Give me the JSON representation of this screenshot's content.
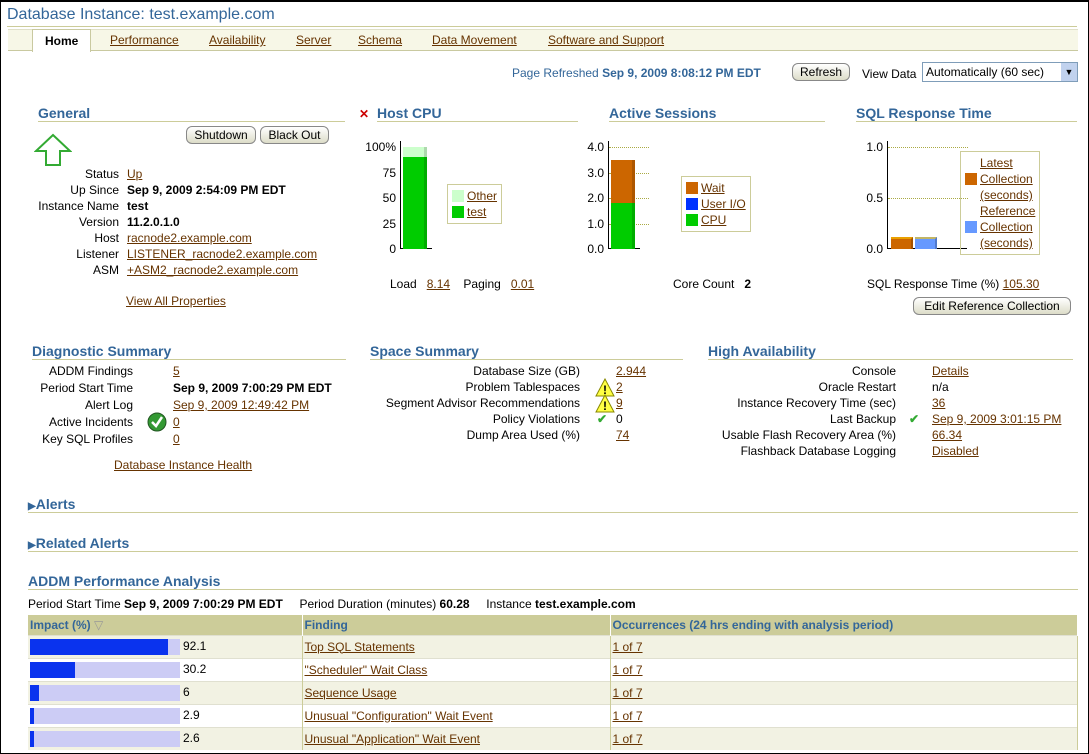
{
  "title": "Database Instance: test.example.com",
  "tabs": [
    {
      "label": "Home",
      "active": true
    },
    {
      "label": "Performance"
    },
    {
      "label": "Availability"
    },
    {
      "label": "Server"
    },
    {
      "label": "Schema"
    },
    {
      "label": "Data Movement"
    },
    {
      "label": "Software and Support"
    }
  ],
  "refresh": {
    "label": "Page Refreshed",
    "time": "Sep 9, 2009 8:08:12 PM EDT",
    "button": "Refresh",
    "view_label": "View Data",
    "view_value": "Automatically (60 sec)"
  },
  "general": {
    "title": "General",
    "status_icon": "up-arrow-icon",
    "buttons": [
      "Shutdown",
      "Black Out"
    ],
    "rows": [
      {
        "label": "Status",
        "value": "Up",
        "link": true
      },
      {
        "label": "Up Since",
        "value": "Sep 9, 2009 2:54:09 PM EDT"
      },
      {
        "label": "Instance Name",
        "value": "test"
      },
      {
        "label": "Version",
        "value": "11.2.0.1.0"
      },
      {
        "label": "Host",
        "value": "racnode2.example.com",
        "link": true
      },
      {
        "label": "Listener",
        "value": "LISTENER_racnode2.example.com",
        "link": true
      },
      {
        "label": "ASM",
        "value": "+ASM2_racnode2.example.com",
        "link": true
      }
    ],
    "view_all": "View All Properties"
  },
  "host_cpu": {
    "title": "Host CPU",
    "alert_icon": "red-x-icon",
    "load_label": "Load",
    "load": "8.14",
    "paging_label": "Paging",
    "paging": "0.01"
  },
  "active_sessions": {
    "title": "Active Sessions",
    "core_label": "Core Count",
    "core": "2"
  },
  "sql_response": {
    "title": "SQL Response Time",
    "pct_label": "SQL Response Time (%)",
    "pct": "105.30",
    "button": "Edit Reference Collection"
  },
  "chart_data": [
    {
      "type": "bar",
      "stacked": true,
      "title": "Host CPU",
      "yticks": [
        "0",
        "25",
        "50",
        "75",
        "100%"
      ],
      "ylim": [
        0,
        100
      ],
      "series": [
        {
          "name": "test",
          "values": [
            90
          ],
          "color": "#00cc00"
        },
        {
          "name": "Other",
          "values": [
            10
          ],
          "color": "#ccffcc"
        }
      ]
    },
    {
      "type": "bar",
      "stacked": true,
      "title": "Active Sessions",
      "yticks": [
        "0.0",
        "1.0",
        "2.0",
        "3.0",
        "4.0"
      ],
      "ylim": [
        0,
        4
      ],
      "series": [
        {
          "name": "CPU",
          "values": [
            1.8
          ],
          "color": "#00cc00"
        },
        {
          "name": "User I/O",
          "values": [
            0
          ],
          "color": "#0033ff"
        },
        {
          "name": "Wait",
          "values": [
            1.7
          ],
          "color": "#cc6600"
        }
      ],
      "legend_order": [
        "Wait",
        "User I/O",
        "CPU"
      ]
    },
    {
      "type": "bar",
      "title": "SQL Response Time",
      "yticks": [
        "0.0",
        "0.5",
        "1.0"
      ],
      "ylim": [
        0,
        1
      ],
      "series": [
        {
          "name": "Latest Collection (seconds)",
          "values": [
            0.12
          ],
          "color": "#cc6600"
        },
        {
          "name": "Reference Collection (seconds)",
          "values": [
            0.12
          ],
          "color": "#6699ff"
        }
      ],
      "legend_lines": [
        [
          "Latest",
          "Collection",
          "(seconds)"
        ],
        [
          "Reference",
          "Collection",
          "(seconds)"
        ]
      ]
    }
  ],
  "diagnostic": {
    "title": "Diagnostic Summary",
    "rows": [
      {
        "label": "ADDM Findings",
        "value": "5",
        "link": true
      },
      {
        "label": "Period Start Time",
        "value": "Sep 9, 2009 7:00:29 PM EDT",
        "bold": true
      },
      {
        "label": "Alert Log",
        "value": "Sep 9, 2009 12:49:42 PM",
        "link": true
      },
      {
        "label": "Active Incidents",
        "value": "0",
        "link": true,
        "icon": "green-check-circle-icon"
      },
      {
        "label": "Key SQL Profiles",
        "value": "0",
        "link": true
      }
    ],
    "health": "Database Instance Health"
  },
  "space": {
    "title": "Space Summary",
    "rows": [
      {
        "label": "Database Size (GB)",
        "value": "2.944",
        "link": true
      },
      {
        "label": "Problem Tablespaces",
        "value": "2",
        "link": true,
        "icon": "warning-icon"
      },
      {
        "label": "Segment Advisor Recommendations",
        "value": "9",
        "link": true,
        "icon": "warning-icon"
      },
      {
        "label": "Policy Violations",
        "value": "0",
        "icon": "checkmark-icon"
      },
      {
        "label": "Dump Area Used (%)",
        "value": "74",
        "link": true
      }
    ]
  },
  "ha": {
    "title": "High Availability",
    "rows": [
      {
        "label": "Console",
        "value": "Details",
        "link": true
      },
      {
        "label": "Oracle Restart",
        "value": "n/a"
      },
      {
        "label": "Instance Recovery Time (sec)",
        "value": "36",
        "link": true
      },
      {
        "label": "Last Backup",
        "value": "Sep 9, 2009 3:01:15 PM",
        "link": true,
        "icon": "checkmark-icon"
      },
      {
        "label": "Usable Flash Recovery Area (%)",
        "value": "66.34",
        "link": true
      },
      {
        "label": "Flashback Database Logging",
        "value": "Disabled",
        "link": true
      }
    ]
  },
  "alerts": "Alerts",
  "related_alerts": "Related Alerts",
  "addm": {
    "title": "ADDM Performance Analysis",
    "period_label": "Period Start Time",
    "period": "Sep 9, 2009 7:00:29 PM EDT",
    "duration_label": "Period Duration (minutes)",
    "duration": "60.28",
    "instance_label": "Instance",
    "instance": "test.example.com",
    "columns": [
      "Impact (%)",
      "Finding",
      "Occurrences (24 hrs ending with analysis period)"
    ],
    "rows": [
      {
        "impact": 92.1,
        "finding": "Top SQL Statements",
        "occ": "1 of 7"
      },
      {
        "impact": 30.2,
        "finding": "\"Scheduler\" Wait Class",
        "occ": "1 of 7"
      },
      {
        "impact": 6,
        "finding": "Sequence Usage",
        "occ": "1 of 7"
      },
      {
        "impact": 2.9,
        "finding": "Unusual \"Configuration\" Wait Event",
        "occ": "1 of 7"
      },
      {
        "impact": 2.6,
        "finding": "Unusual \"Application\" Wait Event",
        "occ": "1 of 7"
      }
    ]
  }
}
